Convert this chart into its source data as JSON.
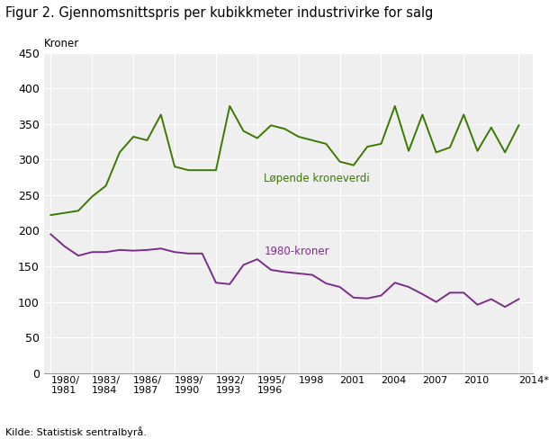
{
  "title": "Figur 2. Gjennomsnittspris per kubikkmeter industrivirke for salg",
  "ylabel_text": "Kroner",
  "source": "Kilde: Statistisk sentralbyrå.",
  "x_labels": [
    "1980/\n1981",
    "1983/\n1984",
    "1986/\n1987",
    "1989/\n1990",
    "1992/\n1993",
    "1995/\n1996",
    "1998",
    "2001",
    "2004",
    "2007",
    "2010",
    "2014*"
  ],
  "lopende_label": "Løpende kroneverdi",
  "kroner_label": "1980-kroner",
  "lopende_color": "#3a7a00",
  "kroner_color": "#7b2d8b",
  "background_color": "#efefef",
  "ylim": [
    0,
    450
  ],
  "yticks": [
    0,
    50,
    100,
    150,
    200,
    250,
    300,
    350,
    400,
    450
  ],
  "years": [
    1980,
    1981,
    1982,
    1983,
    1984,
    1985,
    1986,
    1987,
    1988,
    1989,
    1990,
    1991,
    1992,
    1993,
    1994,
    1995,
    1996,
    1997,
    1998,
    1999,
    2000,
    2001,
    2002,
    2003,
    2004,
    2005,
    2006,
    2007,
    2008,
    2009,
    2010,
    2011,
    2012,
    2013,
    2014
  ],
  "lopende_y": [
    222,
    225,
    228,
    248,
    263,
    310,
    332,
    327,
    363,
    290,
    285,
    285,
    285,
    375,
    340,
    330,
    348,
    343,
    332,
    327,
    322,
    297,
    292,
    318,
    322,
    375,
    312,
    363,
    310,
    317,
    363,
    312,
    345,
    310,
    348
  ],
  "kroner_y": [
    195,
    178,
    165,
    170,
    170,
    173,
    172,
    173,
    175,
    170,
    168,
    168,
    127,
    125,
    152,
    160,
    145,
    142,
    140,
    138,
    126,
    121,
    106,
    105,
    109,
    127,
    121,
    111,
    100,
    113,
    113,
    96,
    104,
    93,
    104
  ]
}
